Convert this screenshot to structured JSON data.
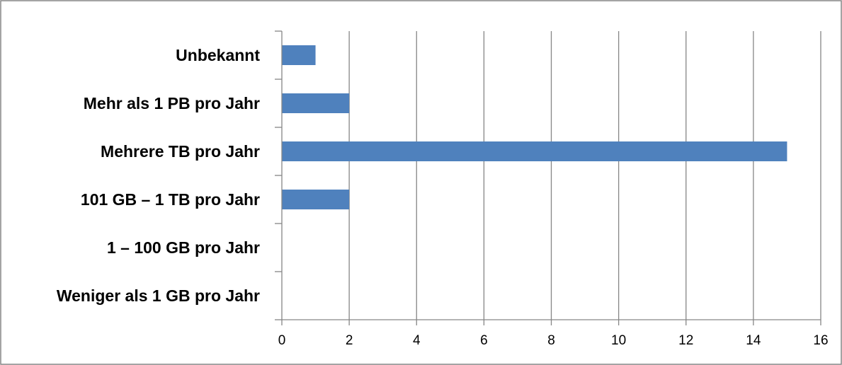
{
  "chart_data": {
    "type": "bar",
    "orientation": "horizontal",
    "categories": [
      "Unbekannt",
      "Mehr als 1 PB pro Jahr",
      "Mehrere TB pro Jahr",
      "101 GB – 1 TB pro Jahr",
      "1 – 100 GB pro Jahr",
      "Weniger als 1 GB pro Jahr"
    ],
    "values": [
      1,
      2,
      15,
      2,
      0,
      0
    ],
    "xlim": [
      0,
      16
    ],
    "x_ticks": [
      0,
      2,
      4,
      6,
      8,
      10,
      12,
      14,
      16
    ],
    "x_tick_labels": [
      "0",
      "2",
      "4",
      "6",
      "8",
      "10",
      "12",
      "14",
      "16"
    ],
    "grid": "vertical",
    "legend": "none",
    "title": "",
    "xlabel": "",
    "ylabel": "",
    "colors": {
      "bar": "#4F81BD",
      "grid": "#868686",
      "border": "#868686"
    }
  }
}
